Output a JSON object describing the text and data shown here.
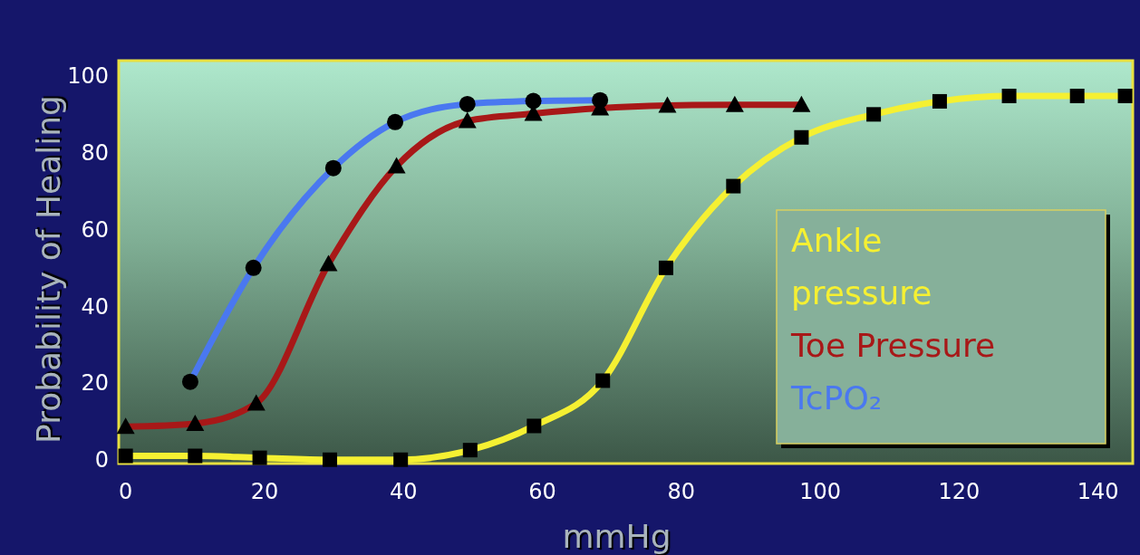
{
  "chart_data": {
    "type": "line",
    "xlabel": "mmHg",
    "ylabel": "Probability of Healing",
    "xlim": [
      -1,
      145
    ],
    "ylim": [
      -1,
      104
    ],
    "xticks": [
      0,
      20,
      40,
      60,
      80,
      100,
      120,
      140
    ],
    "yticks": [
      0,
      20,
      40,
      60,
      80,
      100
    ],
    "grid": false,
    "legend": "bottom right",
    "line_style": "solid",
    "series": [
      {
        "name": "Ankle pressure",
        "color": "#f5f032",
        "marker": "square",
        "x": [
          0,
          10,
          19.3,
          29.4,
          39.6,
          49.6,
          58.8,
          68.7,
          77.8,
          87.5,
          97.3,
          107.7,
          117.2,
          127.2,
          137,
          143.9
        ],
        "values": [
          1,
          1,
          0.5,
          0,
          0,
          2.5,
          8.8,
          20.6,
          50,
          71.3,
          84,
          90,
          93.4,
          94.8,
          94.8,
          94.8
        ]
      },
      {
        "name": "Toe Pressure",
        "color": "#a81818",
        "marker": "triangle",
        "x": [
          0,
          10,
          18.8,
          29.2,
          39,
          49.2,
          58.7,
          68.3,
          78,
          87.7,
          97.3
        ],
        "values": [
          8.6,
          9.4,
          14.7,
          51,
          76.5,
          88.3,
          90.2,
          91.6,
          92.3,
          92.5,
          92.5
        ]
      },
      {
        "name": "TcPO₂",
        "color": "#4a78f0",
        "marker": "circle",
        "x": [
          9.3,
          18.4,
          29.9,
          38.8,
          49.2,
          58.7,
          68.3
        ],
        "values": [
          20.3,
          50,
          76,
          88,
          92.7,
          93.5,
          93.7
        ]
      }
    ]
  }
}
